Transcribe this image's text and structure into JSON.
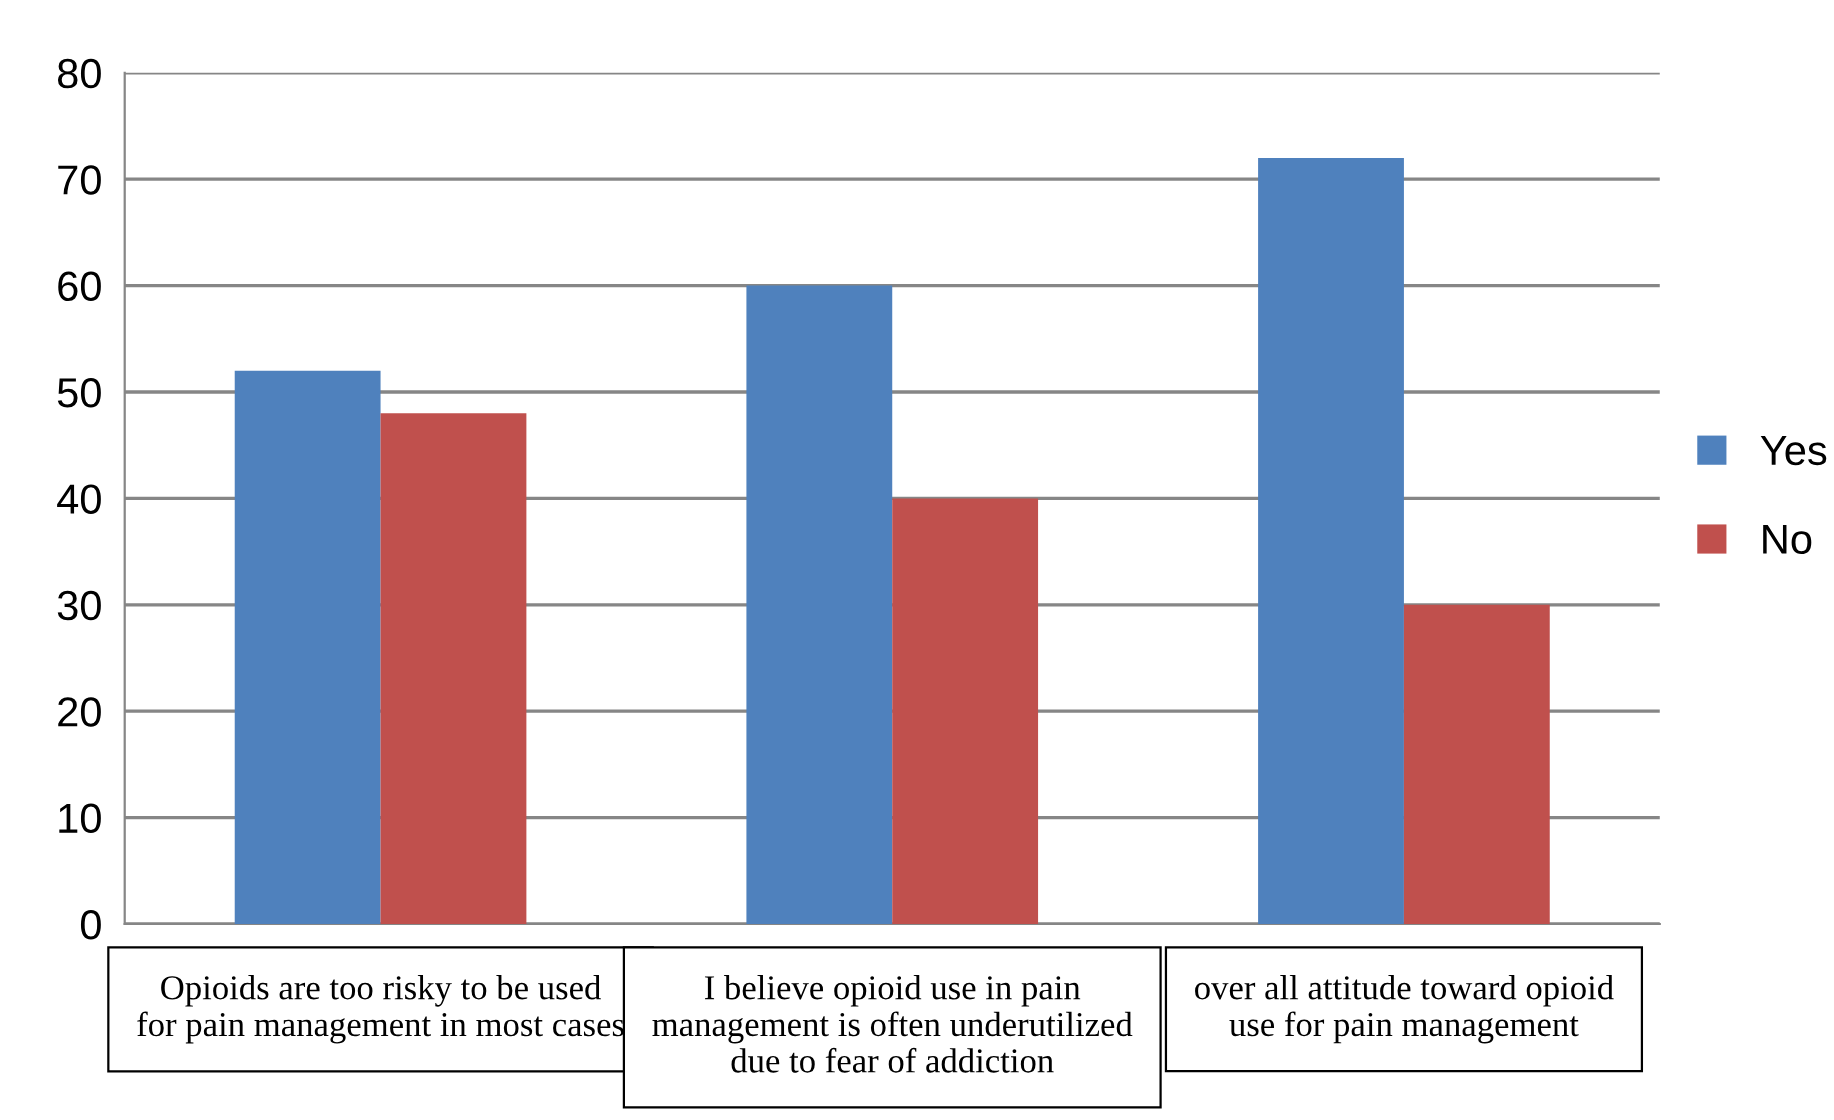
{
  "chart_data": {
    "type": "bar",
    "categories": [
      "Opioids are too risky to be used for pain management in most cases",
      "I believe opioid use in pain management is often underutilized due to fear of addiction",
      "over all attitude toward opioid use for pain management"
    ],
    "series": [
      {
        "name": "Yes",
        "color": "#4f81bd",
        "values": [
          52,
          60,
          72
        ]
      },
      {
        "name": "No",
        "color": "#c0504d",
        "values": [
          48,
          40,
          30
        ]
      }
    ],
    "ylim": [
      0,
      80
    ],
    "yticks": [
      0,
      10,
      20,
      30,
      40,
      50,
      60,
      70,
      80
    ],
    "grid": "y",
    "legend": "right"
  }
}
